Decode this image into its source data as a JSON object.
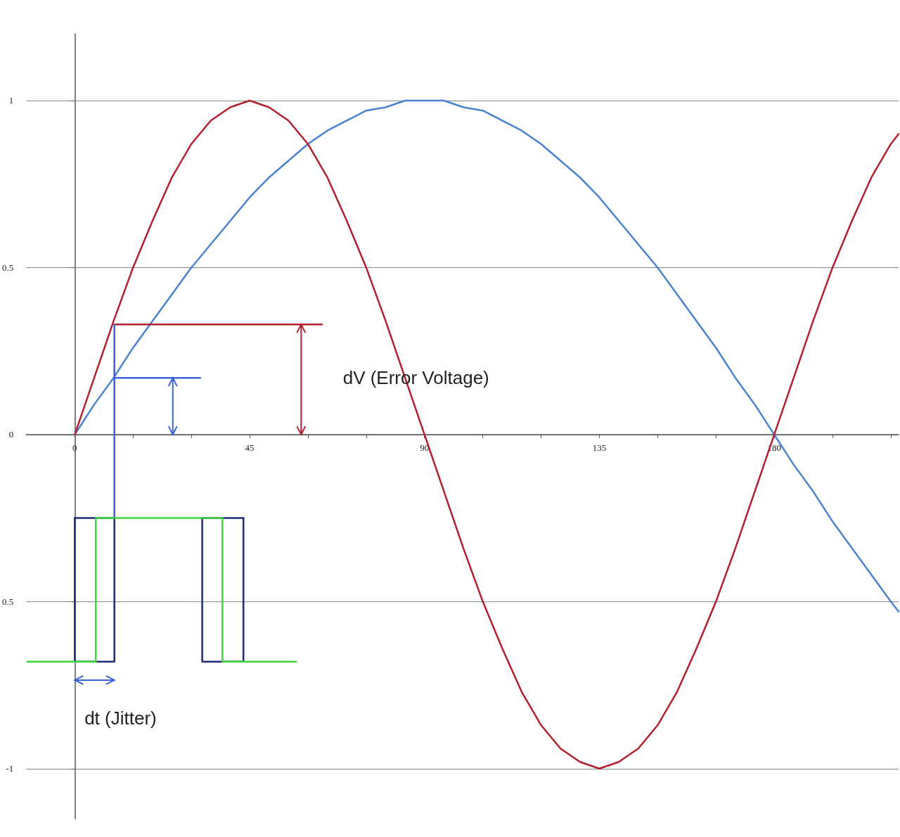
{
  "chart_data": {
    "type": "line",
    "annotations": [
      "dV (Error Voltage)",
      "dt (Jitter)"
    ],
    "xlim": [
      -12.5,
      212
    ],
    "ylim": [
      -1.15,
      1.2
    ],
    "xticks": [
      0,
      {
        "value": 15,
        "label": null
      },
      {
        "value": 30,
        "label": null
      },
      45,
      {
        "value": 60,
        "label": null
      },
      {
        "value": 75,
        "label": null
      },
      90,
      {
        "value": 105,
        "label": null
      },
      {
        "value": 120,
        "label": null
      },
      135,
      {
        "value": 150,
        "label": null
      },
      {
        "value": 165,
        "label": null
      },
      180,
      {
        "value": 195,
        "label": null
      },
      {
        "value": 210,
        "label": null
      }
    ],
    "yticks": [
      -1,
      {
        "value": -0.5,
        "label": "0.5"
      },
      0,
      0.5,
      1
    ],
    "grid": "y",
    "marker": "none",
    "line_style": "solid",
    "series": [
      {
        "color": "#4a82d2",
        "x": [
          0,
          5,
          10,
          15,
          20,
          25,
          30,
          35,
          40,
          45,
          50,
          55,
          60,
          65,
          70,
          75,
          80,
          85,
          90,
          95,
          100,
          105,
          110,
          115,
          120,
          125,
          130,
          135,
          140,
          145,
          150,
          155,
          160,
          165,
          170,
          175,
          180,
          185,
          190,
          195,
          200,
          205,
          210,
          212
        ],
        "values": [
          0,
          0.09,
          0.17,
          0.26,
          0.34,
          0.42,
          0.5,
          0.57,
          0.64,
          0.71,
          0.77,
          0.82,
          0.87,
          0.91,
          0.94,
          0.97,
          0.98,
          1,
          1,
          1,
          0.98,
          0.97,
          0.94,
          0.91,
          0.87,
          0.82,
          0.77,
          0.71,
          0.64,
          0.57,
          0.5,
          0.42,
          0.34,
          0.26,
          0.17,
          0.09,
          0,
          -0.09,
          -0.17,
          -0.26,
          -0.34,
          -0.42,
          -0.5,
          -0.53
        ]
      },
      {
        "color": "#b2202e",
        "x": [
          0,
          5,
          10,
          15,
          20,
          25,
          30,
          35,
          40,
          45,
          50,
          55,
          60,
          65,
          70,
          75,
          80,
          85,
          90,
          95,
          100,
          105,
          110,
          115,
          120,
          125,
          130,
          135,
          140,
          145,
          150,
          155,
          160,
          165,
          170,
          175,
          180,
          185,
          190,
          195,
          200,
          205,
          210,
          212
        ],
        "values": [
          0,
          0.17,
          0.34,
          0.5,
          0.64,
          0.77,
          0.87,
          0.94,
          0.98,
          1,
          0.98,
          0.94,
          0.87,
          0.77,
          0.64,
          0.5,
          0.34,
          0.17,
          0,
          -0.17,
          -0.34,
          -0.5,
          -0.64,
          -0.77,
          -0.87,
          -0.94,
          -0.98,
          -1,
          -0.98,
          -0.94,
          -0.87,
          -0.77,
          -0.64,
          -0.5,
          -0.34,
          -0.17,
          0,
          0.17,
          0.34,
          0.5,
          0.64,
          0.77,
          0.87,
          0.9
        ]
      },
      {
        "color": "#b2202e",
        "x": [
          10.2,
          63.6
        ],
        "values": [
          0.33,
          0.33
        ]
      },
      {
        "color": "#3b62d6",
        "x": [
          10.2,
          10.2
        ],
        "values": [
          -0.25,
          0.33
        ]
      },
      {
        "color": "#3b62d6",
        "x": [
          10.2,
          32.3
        ],
        "values": [
          0.17,
          0.17
        ]
      },
      {
        "color": "#1f2a7a",
        "x": [
          0,
          0,
          10.2,
          10.2
        ],
        "values": [
          -0.25,
          -0.68,
          -0.68,
          -0.25
        ]
      },
      {
        "color": "#1f2a7a",
        "x": [
          32.8,
          32.8,
          43.4,
          43.4
        ],
        "values": [
          -0.25,
          -0.68,
          -0.68,
          -0.25
        ]
      },
      {
        "color": "#1f2a7a",
        "x": [
          0,
          10.2,
          20,
          32.8,
          43.4
        ],
        "values": [
          -0.25,
          -0.25,
          null,
          -0.25,
          -0.25
        ]
      },
      {
        "color": "#3ed63e",
        "x": [
          -12.2,
          5.4,
          5.4,
          38,
          38,
          57
        ],
        "values": [
          -0.68,
          -0.68,
          -0.25,
          -0.25,
          -0.68,
          -0.68
        ]
      }
    ]
  }
}
